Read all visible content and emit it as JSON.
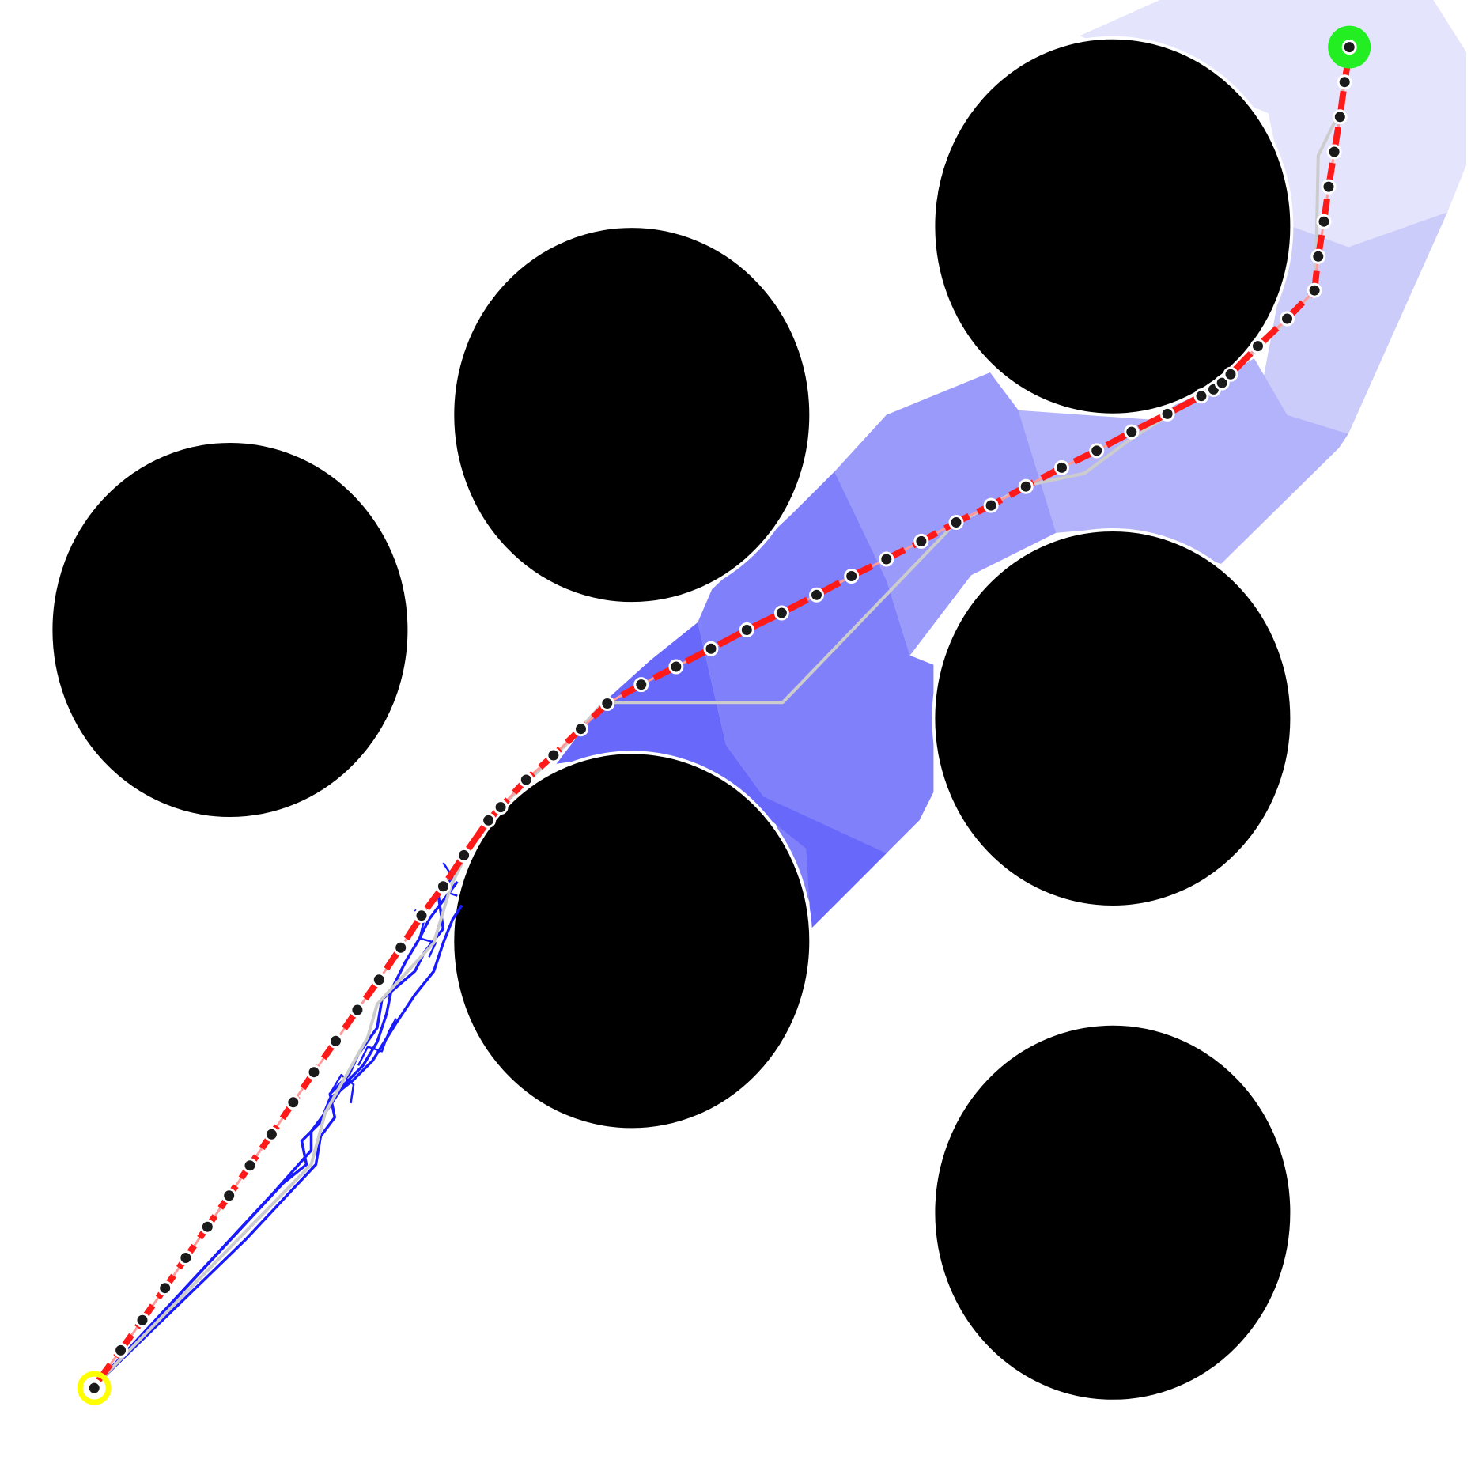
{
  "colors": {
    "background": "#ffffff",
    "obstacle": "#000000",
    "obstacle_outline": "#ffffff",
    "region_shades": [
      "#e4e4fd",
      "#ccccfb",
      "#b3b3fb",
      "#9a9afb",
      "#8080fb",
      "#6868fb"
    ],
    "tree_edges": "#1a1aff",
    "coarse_path": "#cccccc",
    "planned_path": "#ff1a1a",
    "waypoint_fill": "#1a1a1a",
    "waypoint_outline": "#ffffff",
    "start_marker": "#ffff00",
    "goal_marker": "#22ee22"
  },
  "legend_icons": {
    "start": "start-marker-yellow-ring",
    "goal": "goal-marker-green-dot",
    "obstacle": "circle-obstacle"
  }
}
